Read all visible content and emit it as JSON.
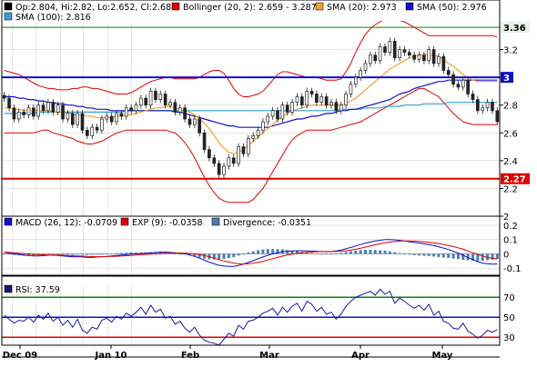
{
  "colors": {
    "candle": "#222222",
    "bollinger": "#dd0000",
    "sma20": "#f0a030",
    "sma50": "#1010cc",
    "sma100": "#33a0d8",
    "resistance": "#1010cc",
    "support": "#dd0000",
    "green_line": "#008800",
    "macd": "#1010cc",
    "exp": "#dd0000",
    "divergence": "#4a7fb0",
    "rsi": "#1a1aaa",
    "axis": "#000000",
    "grid": "#cccccc"
  },
  "legend": {
    "ohlc": "Op:2.804, Hi:2.82, Lo:2.652, Cl:2.68",
    "bollinger": "Bollinger (20, 2): 2.659 - 3.287",
    "sma20": "SMA (20): 2.973",
    "sma50": "SMA (50): 2.976",
    "sma100": "SMA (100): 2.816",
    "macd": "MACD (26, 12): -0.0709",
    "exp": "EXP (9): -0.0358",
    "divergence": "Divergence: -0.0351",
    "rsi": "RSI: 37.59"
  },
  "x_labels": [
    "Dec 09",
    "Jan 10",
    "Feb",
    "Mar",
    "Apr",
    "May"
  ],
  "chart_data": [
    {
      "type": "candlestick",
      "panel": "price",
      "ylim": [
        2.0,
        3.4
      ],
      "yticks": [
        2,
        2.2,
        2.4,
        2.6,
        2.8,
        3,
        3.2
      ],
      "ytick_labels": [
        "2",
        "2.2",
        "2.4",
        "2.6",
        "2.8",
        "3",
        "3.2"
      ],
      "hlines": [
        {
          "value": 3.36,
          "label": "3.36",
          "style": "green"
        },
        {
          "value": 3.0,
          "label": "3",
          "style": "blue"
        },
        {
          "value": 2.27,
          "label": "2.27",
          "style": "red"
        }
      ],
      "closes": [
        2.85,
        2.78,
        2.7,
        2.75,
        2.73,
        2.78,
        2.72,
        2.8,
        2.76,
        2.82,
        2.75,
        2.8,
        2.7,
        2.74,
        2.66,
        2.74,
        2.62,
        2.58,
        2.64,
        2.62,
        2.7,
        2.72,
        2.68,
        2.74,
        2.72,
        2.78,
        2.76,
        2.8,
        2.85,
        2.8,
        2.9,
        2.84,
        2.88,
        2.8,
        2.82,
        2.75,
        2.78,
        2.7,
        2.66,
        2.7,
        2.6,
        2.48,
        2.42,
        2.38,
        2.3,
        2.36,
        2.42,
        2.38,
        2.5,
        2.45,
        2.56,
        2.58,
        2.62,
        2.68,
        2.72,
        2.76,
        2.7,
        2.8,
        2.75,
        2.82,
        2.86,
        2.8,
        2.9,
        2.88,
        2.82,
        2.86,
        2.8,
        2.82,
        2.76,
        2.8,
        2.88,
        2.95,
        3.0,
        3.05,
        3.1,
        3.16,
        3.12,
        3.22,
        3.18,
        3.26,
        3.14,
        3.2,
        3.18,
        3.16,
        3.13,
        3.16,
        3.12,
        3.2,
        3.1,
        3.15,
        3.05,
        3.02,
        2.95,
        2.93,
        2.98,
        2.88,
        2.84,
        2.76,
        2.78,
        2.82,
        2.76,
        2.68
      ],
      "sma20": [
        2.78,
        2.78,
        2.77,
        2.77,
        2.76,
        2.76,
        2.76,
        2.76,
        2.76,
        2.76,
        2.75,
        2.75,
        2.75,
        2.74,
        2.74,
        2.73,
        2.73,
        2.72,
        2.72,
        2.71,
        2.71,
        2.71,
        2.71,
        2.72,
        2.72,
        2.73,
        2.73,
        2.74,
        2.75,
        2.76,
        2.77,
        2.78,
        2.78,
        2.79,
        2.79,
        2.78,
        2.77,
        2.76,
        2.75,
        2.73,
        2.7,
        2.67,
        2.63,
        2.58,
        2.53,
        2.49,
        2.46,
        2.45,
        2.46,
        2.48,
        2.51,
        2.54,
        2.57,
        2.6,
        2.63,
        2.66,
        2.69,
        2.72,
        2.74,
        2.76,
        2.77,
        2.78,
        2.79,
        2.8,
        2.8,
        2.8,
        2.8,
        2.8,
        2.8,
        2.8,
        2.81,
        2.83,
        2.85,
        2.88,
        2.91,
        2.94,
        2.97,
        3.0,
        3.03,
        3.06,
        3.08,
        3.1,
        3.12,
        3.14,
        3.15,
        3.16,
        3.17,
        3.16,
        3.16,
        3.15,
        3.13,
        3.1,
        3.08,
        3.05,
        3.02,
        3.0,
        2.98,
        2.97,
        2.97,
        2.97,
        2.97,
        2.97
      ],
      "bb_upper": [
        3.05,
        3.04,
        3.03,
        3.02,
        3.0,
        2.98,
        2.96,
        2.94,
        2.93,
        2.92,
        2.92,
        2.91,
        2.91,
        2.91,
        2.92,
        2.92,
        2.93,
        2.93,
        2.92,
        2.92,
        2.91,
        2.9,
        2.89,
        2.88,
        2.88,
        2.88,
        2.89,
        2.91,
        2.93,
        2.95,
        2.97,
        2.98,
        2.99,
        3.0,
        3.0,
        2.99,
        2.99,
        2.99,
        2.99,
        2.99,
        3.0,
        3.02,
        3.04,
        3.05,
        3.05,
        3.03,
        2.98,
        2.92,
        2.88,
        2.86,
        2.86,
        2.87,
        2.88,
        2.9,
        2.94,
        2.98,
        3.02,
        3.04,
        3.04,
        3.03,
        3.02,
        3.01,
        3.0,
        3.0,
        3.0,
        2.99,
        2.98,
        2.98,
        2.98,
        2.99,
        3.04,
        3.1,
        3.18,
        3.25,
        3.31,
        3.35,
        3.38,
        3.4,
        3.42,
        3.43,
        3.42,
        3.41,
        3.4,
        3.38,
        3.36,
        3.34,
        3.32,
        3.3,
        3.3,
        3.3,
        3.3,
        3.3,
        3.3,
        3.3,
        3.3,
        3.3,
        3.3,
        3.3,
        3.3,
        3.3,
        3.3,
        3.29
      ],
      "bb_lower": [
        2.6,
        2.6,
        2.6,
        2.6,
        2.6,
        2.6,
        2.6,
        2.61,
        2.62,
        2.62,
        2.6,
        2.59,
        2.58,
        2.57,
        2.56,
        2.54,
        2.53,
        2.52,
        2.52,
        2.53,
        2.54,
        2.56,
        2.58,
        2.6,
        2.61,
        2.62,
        2.62,
        2.62,
        2.62,
        2.62,
        2.62,
        2.62,
        2.62,
        2.62,
        2.61,
        2.6,
        2.57,
        2.53,
        2.48,
        2.42,
        2.35,
        2.28,
        2.22,
        2.17,
        2.13,
        2.11,
        2.1,
        2.1,
        2.1,
        2.1,
        2.1,
        2.12,
        2.16,
        2.2,
        2.26,
        2.32,
        2.38,
        2.44,
        2.5,
        2.55,
        2.58,
        2.6,
        2.62,
        2.62,
        2.62,
        2.62,
        2.62,
        2.62,
        2.63,
        2.64,
        2.65,
        2.66,
        2.67,
        2.68,
        2.7,
        2.72,
        2.74,
        2.76,
        2.78,
        2.8,
        2.82,
        2.84,
        2.86,
        2.88,
        2.9,
        2.92,
        2.92,
        2.9,
        2.88,
        2.86,
        2.82,
        2.78,
        2.74,
        2.71,
        2.68,
        2.67,
        2.66,
        2.66,
        2.66,
        2.66,
        2.66,
        2.66
      ],
      "sma50": [
        2.86,
        2.86,
        2.86,
        2.85,
        2.85,
        2.84,
        2.84,
        2.83,
        2.83,
        2.82,
        2.82,
        2.81,
        2.81,
        2.8,
        2.8,
        2.79,
        2.79,
        2.78,
        2.78,
        2.77,
        2.77,
        2.77,
        2.76,
        2.76,
        2.76,
        2.76,
        2.76,
        2.76,
        2.76,
        2.76,
        2.76,
        2.76,
        2.76,
        2.76,
        2.76,
        2.75,
        2.75,
        2.74,
        2.73,
        2.72,
        2.71,
        2.7,
        2.69,
        2.68,
        2.67,
        2.66,
        2.65,
        2.65,
        2.64,
        2.64,
        2.64,
        2.64,
        2.64,
        2.64,
        2.64,
        2.65,
        2.66,
        2.67,
        2.68,
        2.69,
        2.7,
        2.7,
        2.71,
        2.72,
        2.72,
        2.73,
        2.74,
        2.74,
        2.75,
        2.76,
        2.76,
        2.77,
        2.77,
        2.78,
        2.79,
        2.8,
        2.81,
        2.82,
        2.83,
        2.84,
        2.86,
        2.88,
        2.89,
        2.9,
        2.92,
        2.93,
        2.94,
        2.95,
        2.96,
        2.97,
        2.97,
        2.98,
        2.98,
        2.98,
        2.98,
        2.98,
        2.98,
        2.98,
        2.98,
        2.98,
        2.98,
        2.98
      ],
      "sma100": [
        2.74,
        2.74,
        2.74,
        2.74,
        2.74,
        2.74,
        2.74,
        2.75,
        2.75,
        2.75,
        2.75,
        2.75,
        2.75,
        2.75,
        2.75,
        2.75,
        2.75,
        2.75,
        2.75,
        2.75,
        2.75,
        2.75,
        2.75,
        2.75,
        2.75,
        2.76,
        2.76,
        2.76,
        2.76,
        2.76,
        2.76,
        2.76,
        2.76,
        2.76,
        2.76,
        2.76,
        2.76,
        2.76,
        2.76,
        2.76,
        2.76,
        2.76,
        2.76,
        2.76,
        2.76,
        2.76,
        2.76,
        2.76,
        2.76,
        2.76,
        2.76,
        2.76,
        2.76,
        2.76,
        2.76,
        2.76,
        2.76,
        2.76,
        2.76,
        2.76,
        2.76,
        2.76,
        2.76,
        2.76,
        2.76,
        2.76,
        2.76,
        2.76,
        2.76,
        2.77,
        2.77,
        2.77,
        2.77,
        2.77,
        2.78,
        2.78,
        2.78,
        2.78,
        2.79,
        2.79,
        2.79,
        2.79,
        2.8,
        2.8,
        2.8,
        2.8,
        2.81,
        2.81,
        2.81,
        2.81,
        2.81,
        2.82,
        2.82,
        2.82,
        2.82,
        2.82,
        2.82,
        2.82,
        2.82,
        2.82,
        2.82,
        2.82
      ]
    },
    {
      "type": "line+bar",
      "panel": "macd",
      "ylim": [
        -0.15,
        0.2
      ],
      "yticks": [
        -0.1,
        0,
        0.1,
        0.2
      ],
      "ytick_labels": [
        "-0.1",
        "0",
        "0.1",
        "0.2"
      ],
      "macd": [
        0.01,
        0.005,
        0,
        -0.005,
        -0.01,
        -0.012,
        -0.015,
        -0.015,
        -0.013,
        -0.01,
        -0.01,
        -0.012,
        -0.015,
        -0.018,
        -0.02,
        -0.02,
        -0.022,
        -0.025,
        -0.025,
        -0.022,
        -0.02,
        -0.018,
        -0.015,
        -0.012,
        -0.008,
        -0.005,
        -0.002,
        0,
        0.003,
        0.005,
        0.008,
        0.01,
        0.012,
        0.012,
        0.01,
        0.008,
        0.005,
        0,
        -0.008,
        -0.018,
        -0.03,
        -0.045,
        -0.058,
        -0.07,
        -0.08,
        -0.085,
        -0.088,
        -0.088,
        -0.082,
        -0.072,
        -0.06,
        -0.048,
        -0.035,
        -0.022,
        -0.01,
        0,
        0.008,
        0.015,
        0.018,
        0.02,
        0.022,
        0.022,
        0.02,
        0.02,
        0.018,
        0.016,
        0.015,
        0.016,
        0.02,
        0.026,
        0.035,
        0.045,
        0.055,
        0.065,
        0.075,
        0.083,
        0.09,
        0.095,
        0.1,
        0.1,
        0.098,
        0.095,
        0.09,
        0.085,
        0.08,
        0.075,
        0.07,
        0.065,
        0.058,
        0.05,
        0.04,
        0.03,
        0.018,
        0.005,
        -0.01,
        -0.025,
        -0.04,
        -0.055,
        -0.065,
        -0.07,
        -0.072,
        -0.071
      ],
      "exp": [
        0.012,
        0.01,
        0.008,
        0.005,
        0.002,
        0,
        -0.003,
        -0.005,
        -0.007,
        -0.008,
        -0.008,
        -0.009,
        -0.01,
        -0.012,
        -0.013,
        -0.015,
        -0.016,
        -0.018,
        -0.019,
        -0.02,
        -0.02,
        -0.019,
        -0.018,
        -0.017,
        -0.015,
        -0.013,
        -0.011,
        -0.009,
        -0.006,
        -0.004,
        -0.002,
        0,
        0.002,
        0.004,
        0.005,
        0.006,
        0.006,
        0.005,
        0.003,
        0,
        -0.005,
        -0.012,
        -0.02,
        -0.03,
        -0.04,
        -0.05,
        -0.058,
        -0.065,
        -0.07,
        -0.072,
        -0.07,
        -0.066,
        -0.06,
        -0.052,
        -0.043,
        -0.034,
        -0.025,
        -0.016,
        -0.008,
        -0.002,
        0.004,
        0.008,
        0.011,
        0.013,
        0.015,
        0.016,
        0.016,
        0.016,
        0.017,
        0.019,
        0.022,
        0.026,
        0.032,
        0.039,
        0.047,
        0.055,
        0.063,
        0.07,
        0.077,
        0.082,
        0.086,
        0.089,
        0.09,
        0.09,
        0.089,
        0.087,
        0.084,
        0.081,
        0.077,
        0.072,
        0.066,
        0.059,
        0.051,
        0.042,
        0.032,
        0.02,
        0.008,
        -0.005,
        -0.016,
        -0.025,
        -0.031,
        -0.036
      ],
      "divergence": [
        -0.002,
        -0.005,
        -0.008,
        -0.01,
        -0.012,
        -0.012,
        -0.012,
        -0.01,
        -0.006,
        -0.002,
        -0.002,
        -0.003,
        -0.005,
        -0.006,
        -0.007,
        -0.005,
        -0.006,
        -0.007,
        -0.006,
        -0.002,
        0,
        0.001,
        0.003,
        0.005,
        0.007,
        0.008,
        0.009,
        0.009,
        0.009,
        0.009,
        0.01,
        0.01,
        0.01,
        0.008,
        0.005,
        0.002,
        -0.001,
        -0.005,
        -0.011,
        -0.018,
        -0.025,
        -0.033,
        -0.038,
        -0.04,
        -0.04,
        -0.035,
        -0.03,
        -0.023,
        -0.012,
        0,
        0.01,
        0.018,
        0.025,
        0.03,
        0.033,
        0.034,
        0.033,
        0.031,
        0.026,
        0.022,
        0.018,
        0.014,
        0.009,
        0.007,
        0.003,
        0,
        -0.001,
        0,
        0.003,
        0.007,
        0.013,
        0.019,
        0.023,
        0.026,
        0.028,
        0.028,
        0.027,
        0.025,
        0.023,
        0.018,
        0.012,
        0.006,
        0,
        -0.005,
        -0.009,
        -0.012,
        -0.014,
        -0.016,
        -0.019,
        -0.022,
        -0.026,
        -0.029,
        -0.033,
        -0.037,
        -0.042,
        -0.045,
        -0.048,
        -0.05,
        -0.049,
        -0.045,
        -0.041,
        -0.035
      ]
    },
    {
      "type": "line",
      "panel": "rsi",
      "ylim": [
        22,
        82
      ],
      "yticks": [
        30,
        50,
        70
      ],
      "ytick_labels": [
        "30",
        "50",
        "70"
      ],
      "hlines": [
        {
          "value": 70,
          "style": "green"
        },
        {
          "value": 50,
          "style": "blue"
        },
        {
          "value": 30,
          "style": "red"
        }
      ],
      "values": [
        52,
        48,
        44,
        47,
        46,
        50,
        45,
        52,
        48,
        54,
        46,
        50,
        42,
        47,
        40,
        48,
        37,
        34,
        40,
        38,
        47,
        49,
        45,
        51,
        48,
        54,
        51,
        55,
        60,
        53,
        62,
        55,
        58,
        49,
        51,
        43,
        46,
        39,
        35,
        40,
        32,
        27,
        25,
        24,
        22,
        28,
        34,
        31,
        42,
        38,
        46,
        47,
        50,
        54,
        56,
        59,
        52,
        60,
        55,
        61,
        64,
        56,
        66,
        63,
        56,
        60,
        53,
        55,
        48,
        53,
        61,
        66,
        70,
        72,
        74,
        76,
        72,
        78,
        73,
        76,
        64,
        69,
        66,
        62,
        59,
        62,
        57,
        63,
        52,
        56,
        46,
        44,
        39,
        38,
        44,
        36,
        33,
        29,
        32,
        37,
        35,
        37.59
      ]
    }
  ]
}
